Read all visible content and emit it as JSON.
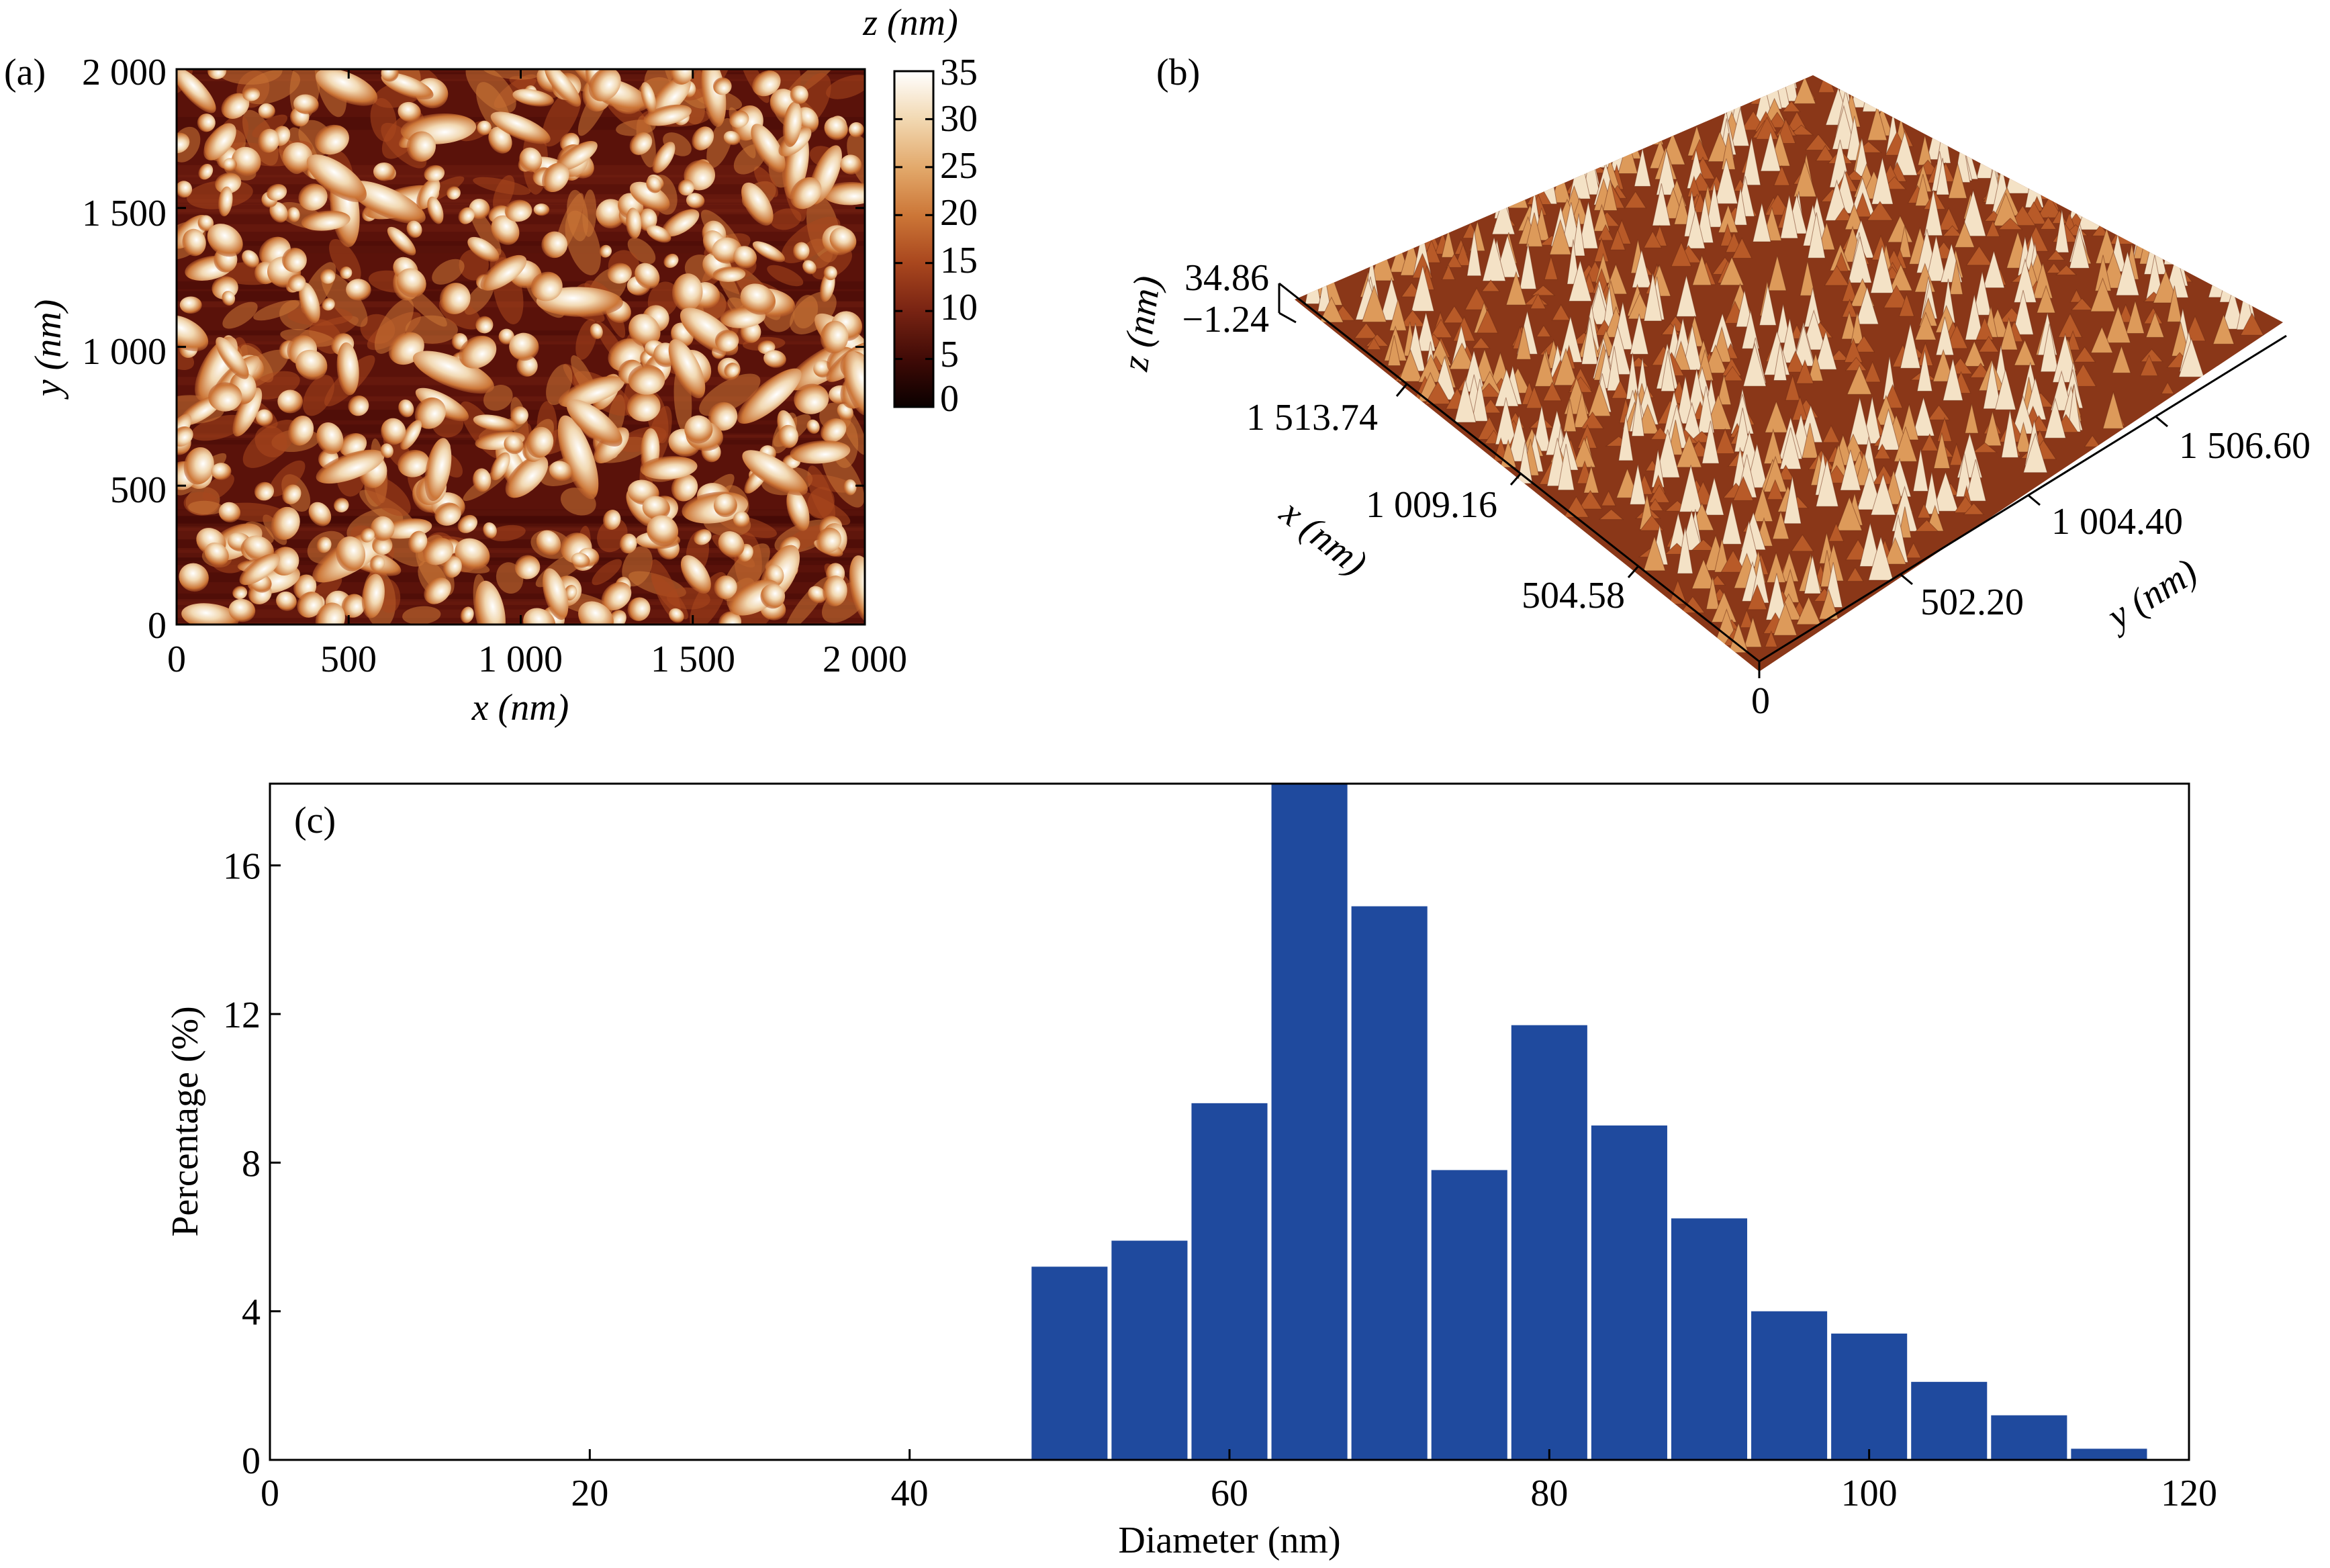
{
  "panel_a": {
    "label": "(a)",
    "x_axis_label": "x (nm)",
    "y_axis_label": "y (nm)",
    "x_ticks": [
      "0",
      "500",
      "1 000",
      "1 500",
      "2 000"
    ],
    "y_ticks": [
      "0",
      "500",
      "1 000",
      "1 500",
      "2 000"
    ],
    "colorbar_title": "z (nm)",
    "colorbar_ticks": [
      "35",
      "30",
      "25",
      "20",
      "15",
      "10",
      "5",
      "0"
    ],
    "colormap": [
      "#0a0000",
      "#3f0a06",
      "#7a2413",
      "#a9471e",
      "#cc7637",
      "#e2a86a",
      "#f2d9b3",
      "#ffffff"
    ]
  },
  "panel_b": {
    "label": "(b)",
    "z_axis_label": "z (nm)",
    "z_ticks": [
      "34.86",
      "−1.24"
    ],
    "x_axis_label": "x (nm)",
    "x_ticks": [
      "1 513.74",
      "1 009.16",
      "504.58"
    ],
    "y_axis_label": "y (nm)",
    "y_ticks": [
      "1 506.60",
      "1 004.40",
      "502.20"
    ],
    "origin_label": "0"
  },
  "chart_data": {
    "type": "bar",
    "panel_label": "(c)",
    "xlabel": "Diameter (nm)",
    "ylabel": "Percentage (%)",
    "xlim": [
      0,
      120
    ],
    "ylim": [
      0,
      18.2
    ],
    "x_ticks": [
      0,
      20,
      40,
      60,
      80,
      100,
      120
    ],
    "y_ticks": [
      0,
      4,
      8,
      12,
      16
    ],
    "bin_width": 5,
    "bar_color": "#1f4a9e",
    "bins": [
      {
        "x": 50,
        "value": 5.2
      },
      {
        "x": 55,
        "value": 5.9
      },
      {
        "x": 60,
        "value": 9.6
      },
      {
        "x": 65,
        "value": 18.2
      },
      {
        "x": 70,
        "value": 14.9
      },
      {
        "x": 75,
        "value": 7.8
      },
      {
        "x": 80,
        "value": 11.7
      },
      {
        "x": 85,
        "value": 9.0
      },
      {
        "x": 90,
        "value": 6.5
      },
      {
        "x": 95,
        "value": 4.0
      },
      {
        "x": 100,
        "value": 3.4
      },
      {
        "x": 105,
        "value": 2.1
      },
      {
        "x": 110,
        "value": 1.2
      },
      {
        "x": 115,
        "value": 0.3
      }
    ]
  }
}
